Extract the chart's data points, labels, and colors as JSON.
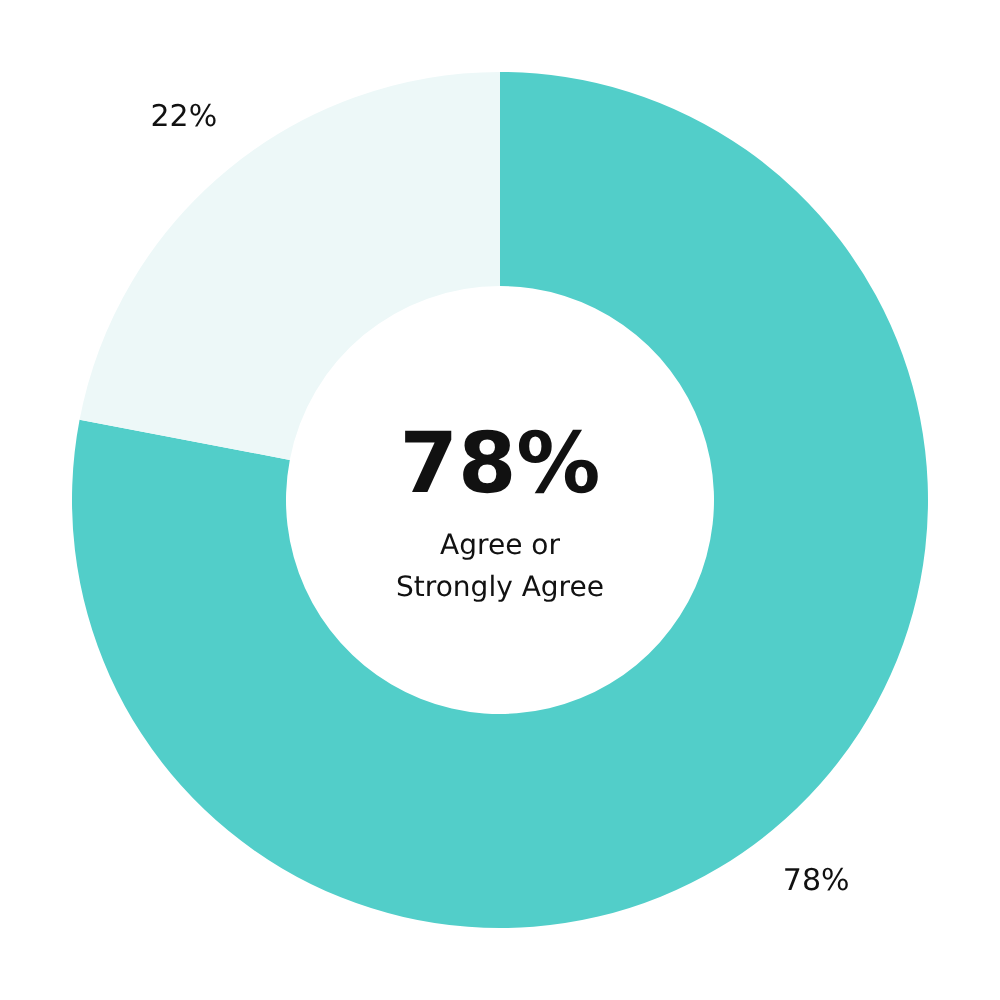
{
  "chart_data": {
    "type": "donut",
    "categories": [
      null,
      null
    ],
    "values": [
      78,
      22
    ],
    "colors": [
      "#52cec9",
      "#edf8f8"
    ],
    "value_labels": [
      "78%",
      "22%"
    ],
    "annotations": [
      "78%",
      "Agree or Strongly Agree"
    ]
  }
}
